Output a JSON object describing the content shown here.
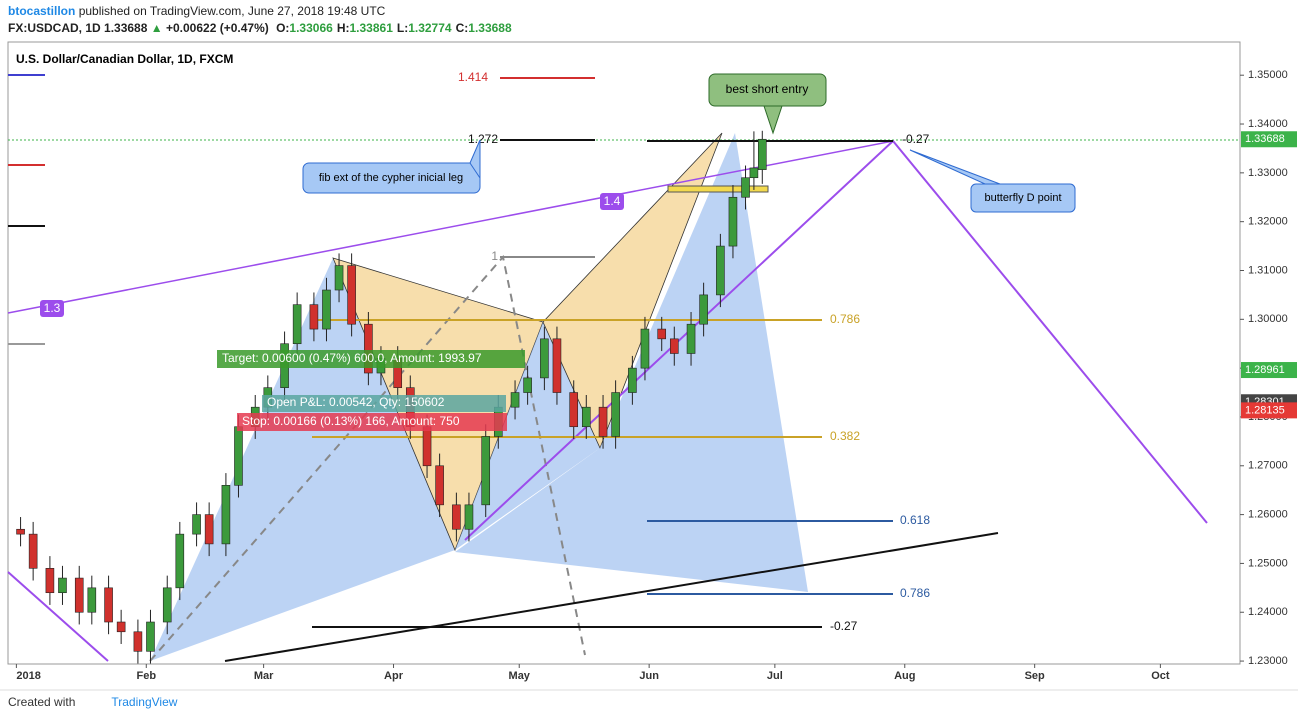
{
  "header": {
    "author": "btocastillon",
    "published": "published on TradingView.com, June 27, 2018 19:48 UTC",
    "symbol": "FX:USDCAD, 1D",
    "last": "1.33688",
    "arrow": "▲",
    "change": "+0.00622 (+0.47%)",
    "ohlc": [
      {
        "key": "O:",
        "val": "1.33066"
      },
      {
        "key": "H:",
        "val": "1.33861"
      },
      {
        "key": "L:",
        "val": "1.32774"
      },
      {
        "key": "C:",
        "val": "1.33688"
      }
    ]
  },
  "footer": {
    "created": "Created with",
    "brand": "TradingView"
  },
  "annotations": {
    "fib_top": [
      "1.414",
      "1.272",
      "1"
    ],
    "fib_mid": [
      "0.786",
      "0.382",
      "-0.27"
    ],
    "fib_d": [
      "-0.27",
      "0.618",
      "0.786"
    ],
    "channel": [
      "1.3",
      "1.4"
    ],
    "callout_fib": "fib ext of the cypher inicial leg",
    "callout_entry": "best short entry",
    "callout_d": "butterfly D point",
    "target": "Target: 0.00600 (0.47%) 600.0, Amount: 1993.97",
    "pnl": "Open P&L: 0.00542, Qty: 150602",
    "stop": "Stop: 0.00166 (0.13%) 166, Amount: 750"
  },
  "chart_data": {
    "type": "candlestick",
    "title": "U.S. Dollar/Canadian Dollar, 1D, FXCM",
    "up_color": "#3c9a3c",
    "down_color": "#d0312d",
    "x": [
      1,
      4,
      8,
      11,
      15,
      18,
      22,
      25,
      29,
      32,
      36,
      39,
      43,
      46,
      50,
      53,
      57,
      60,
      64,
      67,
      71,
      74,
      77,
      80,
      84,
      87,
      91,
      94,
      98,
      101,
      105,
      108,
      112,
      115,
      119,
      122,
      126,
      129,
      133,
      136,
      140,
      143,
      147,
      150,
      154,
      157,
      161,
      164,
      168,
      171,
      174,
      176,
      178
    ],
    "open": [
      1.257,
      1.256,
      1.249,
      1.244,
      1.247,
      1.24,
      1.245,
      1.238,
      1.236,
      1.232,
      1.238,
      1.245,
      1.256,
      1.26,
      1.254,
      1.266,
      1.278,
      1.282,
      1.286,
      1.295,
      1.303,
      1.298,
      1.306,
      1.311,
      1.299,
      1.289,
      1.292,
      1.286,
      1.278,
      1.27,
      1.262,
      1.257,
      1.262,
      1.276,
      1.282,
      1.285,
      1.288,
      1.296,
      1.285,
      1.278,
      1.282,
      1.276,
      1.285,
      1.29,
      1.298,
      1.296,
      1.293,
      1.299,
      1.305,
      1.315,
      1.325,
      1.329,
      1.33066
    ],
    "high": [
      1.2595,
      1.2585,
      1.2515,
      1.2495,
      1.2495,
      1.2475,
      1.2475,
      1.2405,
      1.2385,
      1.2405,
      1.2475,
      1.2585,
      1.2625,
      1.2625,
      1.2685,
      1.2805,
      1.2845,
      1.2885,
      1.2975,
      1.3055,
      1.3055,
      1.3085,
      1.3135,
      1.3135,
      1.3015,
      1.2945,
      1.2945,
      1.2885,
      1.2805,
      1.2725,
      1.2645,
      1.2645,
      1.2785,
      1.2845,
      1.2875,
      1.2905,
      1.2985,
      1.2985,
      1.2875,
      1.2845,
      1.2845,
      1.2875,
      1.2925,
      1.3005,
      1.3005,
      1.2985,
      1.3015,
      1.3075,
      1.3175,
      1.3275,
      1.3315,
      1.3385,
      1.33861
    ],
    "low": [
      1.2535,
      1.2465,
      1.2415,
      1.2415,
      1.2375,
      1.2375,
      1.2355,
      1.2335,
      1.2295,
      1.2295,
      1.2355,
      1.2425,
      1.2535,
      1.2515,
      1.2515,
      1.2635,
      1.2755,
      1.2795,
      1.2835,
      1.2925,
      1.2955,
      1.2955,
      1.3035,
      1.2965,
      1.2865,
      1.2865,
      1.2835,
      1.2755,
      1.2675,
      1.2595,
      1.2545,
      1.2545,
      1.2595,
      1.2735,
      1.2795,
      1.2825,
      1.2855,
      1.2825,
      1.2755,
      1.2755,
      1.2735,
      1.2735,
      1.2825,
      1.2875,
      1.2935,
      1.2905,
      1.2905,
      1.2965,
      1.3025,
      1.3125,
      1.3225,
      1.3265,
      1.32774
    ],
    "close": [
      1.256,
      1.249,
      1.244,
      1.247,
      1.24,
      1.245,
      1.238,
      1.236,
      1.232,
      1.238,
      1.245,
      1.256,
      1.26,
      1.254,
      1.266,
      1.278,
      1.282,
      1.286,
      1.295,
      1.303,
      1.298,
      1.306,
      1.311,
      1.299,
      1.289,
      1.292,
      1.286,
      1.278,
      1.27,
      1.262,
      1.257,
      1.262,
      1.276,
      1.282,
      1.285,
      1.288,
      1.296,
      1.285,
      1.278,
      1.282,
      1.276,
      1.285,
      1.29,
      1.298,
      1.296,
      1.293,
      1.299,
      1.305,
      1.315,
      1.325,
      1.329,
      1.331,
      1.33688
    ],
    "xlim": [
      -2,
      292
    ],
    "xticks": [
      {
        "value": 0,
        "label": "2018"
      },
      {
        "value": 31,
        "label": "Feb"
      },
      {
        "value": 59,
        "label": "Mar"
      },
      {
        "value": 90,
        "label": "Apr"
      },
      {
        "value": 120,
        "label": "May"
      },
      {
        "value": 151,
        "label": "Jun"
      },
      {
        "value": 181,
        "label": "Jul"
      },
      {
        "value": 212,
        "label": "Aug"
      },
      {
        "value": 243,
        "label": "Sep"
      },
      {
        "value": 273,
        "label": "Oct"
      }
    ],
    "ylim": [
      1.2294,
      1.3568
    ],
    "yticks": [
      {
        "value": 1.23,
        "label": "1.23000"
      },
      {
        "value": 1.24,
        "label": "1.24000"
      },
      {
        "value": 1.25,
        "label": "1.25000"
      },
      {
        "value": 1.26,
        "label": "1.26000"
      },
      {
        "value": 1.27,
        "label": "1.27000"
      },
      {
        "value": 1.28,
        "label": "1.28000"
      },
      {
        "value": 1.29,
        "label": "1.29000"
      },
      {
        "value": 1.3,
        "label": "1.30000"
      },
      {
        "value": 1.31,
        "label": "1.31000"
      },
      {
        "value": 1.32,
        "label": "1.32000"
      },
      {
        "value": 1.33,
        "label": "1.33000"
      },
      {
        "value": 1.34,
        "label": "1.34000"
      },
      {
        "value": 1.35,
        "label": "1.35000"
      }
    ],
    "price_tags": [
      {
        "value": 1.33688,
        "color": "#3cb34a"
      },
      {
        "value": 1.28961,
        "color": "#3cb34a"
      },
      {
        "value": 1.28301,
        "color": "#444444"
      },
      {
        "value": 1.28135,
        "color": "#e53935"
      }
    ]
  }
}
